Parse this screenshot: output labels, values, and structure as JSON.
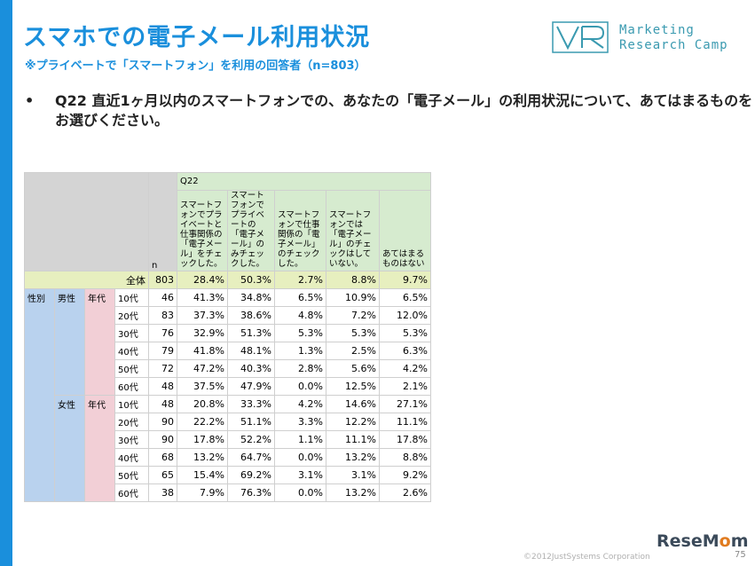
{
  "slide": {
    "title": "スマホでの電子メール利用状況",
    "subtitle": "※プライベートで「スマートフォン」を利用の回答者（n=803）",
    "bullet": "•",
    "question": "Q22 直近1ヶ月以内のスマートフォンでの、あなたの「電子メール」の利用状況について、あてはまるものをお選びください。",
    "logo": {
      "line1": "Marketing",
      "line2": "Research Camp",
      "mark": "VR"
    },
    "copyright": "©2012JustSystems Corporation",
    "page_number": "75",
    "watermark": {
      "part1": "ReseM",
      "part2": "o",
      "part3": "m"
    }
  },
  "table": {
    "q_label": "Q22",
    "n_label": "n",
    "columns": [
      "スマートフォンでプライベートと仕事関係の「電子メール」をチェックした。",
      "スマートフォンでプライベートの「電子メール」のみチェックした。",
      "スマートフォンで仕事関係の「電子メール」のチェックした。",
      "スマートフォンでは「電子メール」のチェックはしていない。",
      "あてはまるものはない"
    ],
    "total": {
      "label": "全体",
      "n": "803",
      "values": [
        "28.4%",
        "50.3%",
        "2.7%",
        "8.8%",
        "9.7%"
      ]
    },
    "group_label": "性別",
    "age_label": "年代",
    "groups": [
      {
        "label": "男性",
        "rows": [
          {
            "age": "10代",
            "n": "46",
            "values": [
              "41.3%",
              "34.8%",
              "6.5%",
              "10.9%",
              "6.5%"
            ]
          },
          {
            "age": "20代",
            "n": "83",
            "values": [
              "37.3%",
              "38.6%",
              "4.8%",
              "7.2%",
              "12.0%"
            ]
          },
          {
            "age": "30代",
            "n": "76",
            "values": [
              "32.9%",
              "51.3%",
              "5.3%",
              "5.3%",
              "5.3%"
            ]
          },
          {
            "age": "40代",
            "n": "79",
            "values": [
              "41.8%",
              "48.1%",
              "1.3%",
              "2.5%",
              "6.3%"
            ]
          },
          {
            "age": "50代",
            "n": "72",
            "values": [
              "47.2%",
              "40.3%",
              "2.8%",
              "5.6%",
              "4.2%"
            ]
          },
          {
            "age": "60代",
            "n": "48",
            "values": [
              "37.5%",
              "47.9%",
              "0.0%",
              "12.5%",
              "2.1%"
            ]
          }
        ]
      },
      {
        "label": "女性",
        "rows": [
          {
            "age": "10代",
            "n": "48",
            "values": [
              "20.8%",
              "33.3%",
              "4.2%",
              "14.6%",
              "27.1%"
            ]
          },
          {
            "age": "20代",
            "n": "90",
            "values": [
              "22.2%",
              "51.1%",
              "3.3%",
              "12.2%",
              "11.1%"
            ]
          },
          {
            "age": "30代",
            "n": "90",
            "values": [
              "17.8%",
              "52.2%",
              "1.1%",
              "11.1%",
              "17.8%"
            ]
          },
          {
            "age": "40代",
            "n": "68",
            "values": [
              "13.2%",
              "64.7%",
              "0.0%",
              "13.2%",
              "8.8%"
            ]
          },
          {
            "age": "50代",
            "n": "65",
            "values": [
              "15.4%",
              "69.2%",
              "3.1%",
              "3.1%",
              "9.2%"
            ]
          },
          {
            "age": "60代",
            "n": "38",
            "values": [
              "7.9%",
              "76.3%",
              "0.0%",
              "13.2%",
              "2.6%"
            ]
          }
        ]
      }
    ]
  },
  "colors": {
    "accent": "#1a8fdc",
    "header_green": "#d6ebcf",
    "total_row": "#e7efbf",
    "gender_blue": "#b9d2ee",
    "age_pink": "#f2cfd6"
  }
}
